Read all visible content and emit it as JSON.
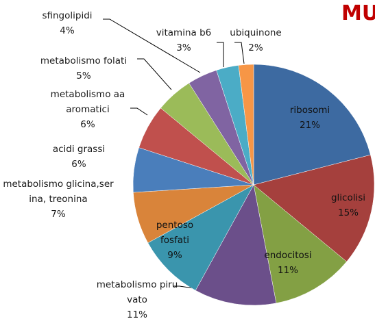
{
  "chart_data": {
    "type": "pie",
    "title": "MUT",
    "categories": [
      "ribosomi",
      "glicolisi",
      "endocitosi",
      "metabolismo piruvato",
      "pentoso fosfati",
      "metabolismo glicina,serina, treonina",
      "acidi grassi",
      "metabolismo aa aromatici",
      "metabolismo folati",
      "sfingolipidi",
      "vitamina b6",
      "ubiquinone"
    ],
    "values": [
      21,
      15,
      11,
      11,
      9,
      7,
      6,
      6,
      5,
      4,
      3,
      2
    ],
    "value_labels": [
      "21%",
      "15%",
      "11%",
      "11%",
      "9%",
      "7%",
      "6%",
      "6%",
      "5%",
      "4%",
      "3%",
      "2%"
    ],
    "colors": [
      "#3d6aa1",
      "#a5403d",
      "#83a044",
      "#6b4f8a",
      "#3a95ad",
      "#d9843a",
      "#4a7ebb",
      "#c0504d",
      "#9bbb59",
      "#8064a2",
      "#4bacc6",
      "#f79646"
    ]
  }
}
